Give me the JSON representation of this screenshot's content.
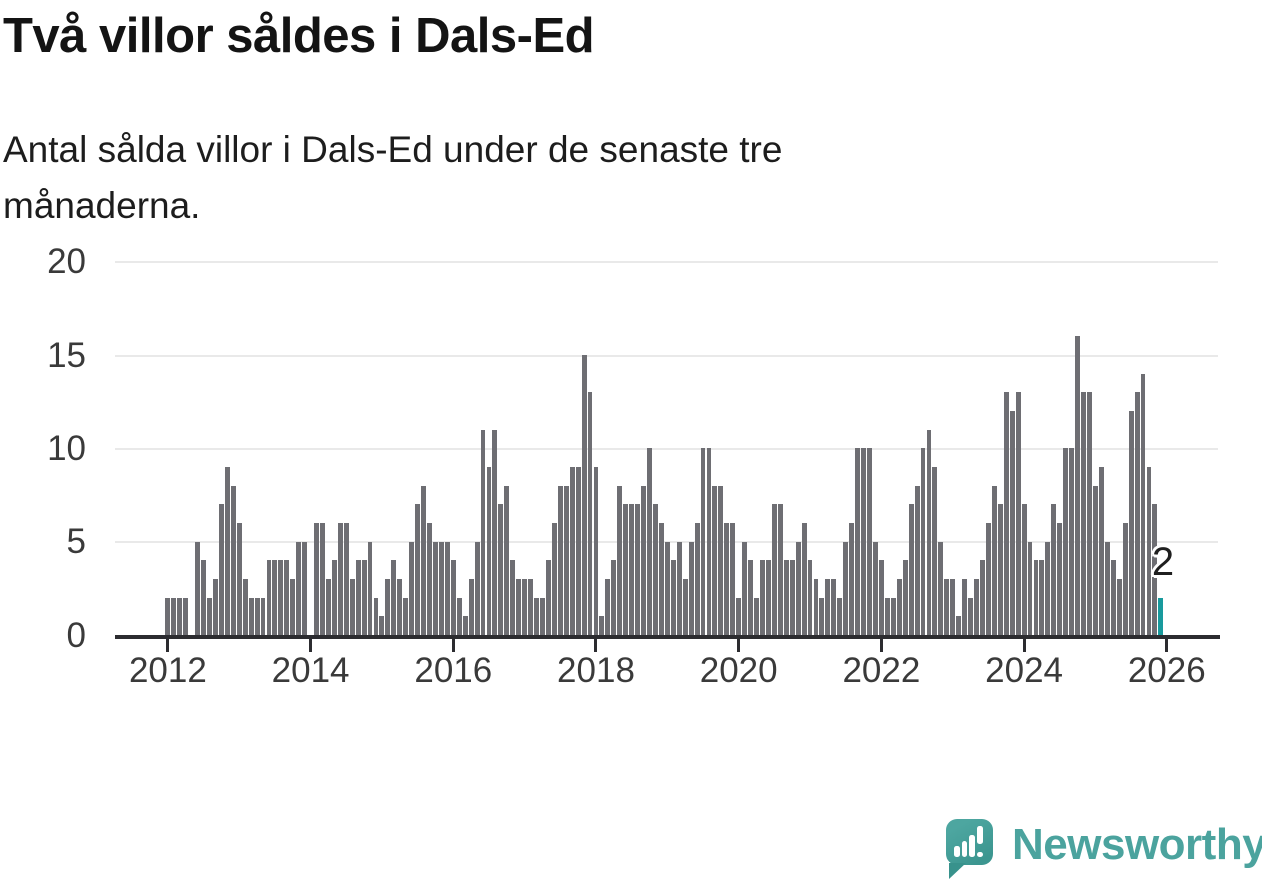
{
  "header": {
    "title": "Två villor såldes i Dals-Ed",
    "subtitle_lines": [
      "Antal sålda villor i Dals-Ed under de senaste tre",
      "månaderna."
    ]
  },
  "chart_data": {
    "type": "bar",
    "title": "Två villor såldes i Dals-Ed",
    "subtitle": "Antal sålda villor i Dals-Ed under de senaste tre månaderna.",
    "ylabel": "",
    "xlabel": "",
    "ylim": [
      0,
      20
    ],
    "y_ticks": [
      0,
      5,
      10,
      15,
      20
    ],
    "x_ticks": [
      2012,
      2014,
      2016,
      2018,
      2020,
      2022,
      2024,
      2026
    ],
    "grid": "horizontal",
    "bar_color": "#6e6e73",
    "highlight_color": "#189a9d",
    "monthly": [
      {
        "year": 2012,
        "values": [
          2,
          2,
          2,
          2,
          0,
          5,
          4,
          2,
          3,
          7,
          9,
          8
        ]
      },
      {
        "year": 2013,
        "values": [
          6,
          3,
          2,
          2,
          2,
          4,
          4,
          4,
          4,
          3,
          5,
          5
        ]
      },
      {
        "year": 2014,
        "values": [
          0,
          6,
          6,
          3,
          4,
          6,
          6,
          3,
          4,
          4,
          5,
          2
        ]
      },
      {
        "year": 2015,
        "values": [
          1,
          3,
          4,
          3,
          2,
          5,
          7,
          8,
          6,
          5,
          5,
          5
        ]
      },
      {
        "year": 2016,
        "values": [
          4,
          2,
          1,
          3,
          5,
          11,
          9,
          11,
          7,
          8,
          4,
          3
        ]
      },
      {
        "year": 2017,
        "values": [
          3,
          3,
          2,
          2,
          4,
          6,
          8,
          8,
          9,
          9,
          15,
          13
        ]
      },
      {
        "year": 2018,
        "values": [
          9,
          1,
          3,
          4,
          8,
          7,
          7,
          7,
          8,
          10,
          7,
          6
        ]
      },
      {
        "year": 2019,
        "values": [
          5,
          4,
          5,
          3,
          5,
          6,
          10,
          10,
          8,
          8,
          6,
          6
        ]
      },
      {
        "year": 2020,
        "values": [
          2,
          5,
          4,
          2,
          4,
          4,
          7,
          7,
          4,
          4,
          5,
          6
        ]
      },
      {
        "year": 2021,
        "values": [
          4,
          3,
          2,
          3,
          3,
          2,
          5,
          6,
          10,
          10,
          10,
          5
        ]
      },
      {
        "year": 2022,
        "values": [
          4,
          2,
          2,
          3,
          4,
          7,
          8,
          10,
          11,
          9,
          5,
          3
        ]
      },
      {
        "year": 2023,
        "values": [
          3,
          1,
          3,
          2,
          3,
          4,
          6,
          8,
          7,
          13,
          12,
          13
        ]
      },
      {
        "year": 2024,
        "values": [
          7,
          5,
          4,
          4,
          5,
          7,
          6,
          10,
          10,
          16,
          13,
          13
        ]
      },
      {
        "year": 2025,
        "values": [
          8,
          9,
          5,
          4,
          3,
          6,
          12,
          13,
          14,
          9,
          7
        ]
      }
    ],
    "latest": {
      "value": 2,
      "label": "2"
    }
  },
  "footer": {
    "brand": "Newsworthy",
    "brand_color": "#4ba39e",
    "logo_icon": "speech-bubble-bar-chart-icon"
  }
}
